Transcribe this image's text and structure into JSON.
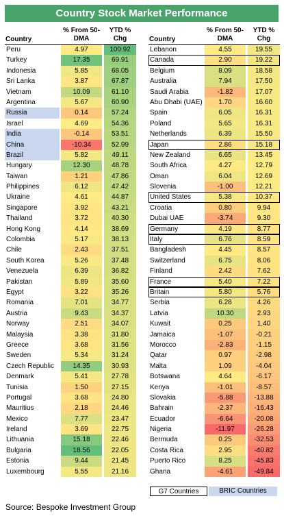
{
  "chart_data": {
    "type": "table",
    "title": "Country Stock Market Performance",
    "columns": [
      "Country",
      "% From 50-DMA",
      "YTD % Chg"
    ],
    "left_rows": [
      {
        "country": "Peru",
        "dma": "4.97",
        "ytd": "100.92",
        "group": ""
      },
      {
        "country": "Turkey",
        "dma": "17.35",
        "ytd": "69.91",
        "group": ""
      },
      {
        "country": "Indonesia",
        "dma": "5.85",
        "ytd": "68.05",
        "group": ""
      },
      {
        "country": "Sri Lanka",
        "dma": "3.87",
        "ytd": "67.87",
        "group": ""
      },
      {
        "country": "Vietnam",
        "dma": "10.09",
        "ytd": "61.10",
        "group": ""
      },
      {
        "country": "Argentina",
        "dma": "5.67",
        "ytd": "60.90",
        "group": ""
      },
      {
        "country": "Russia",
        "dma": "0.14",
        "ytd": "57.24",
        "group": "BRIC"
      },
      {
        "country": "Israel",
        "dma": "4.69",
        "ytd": "54.36",
        "group": ""
      },
      {
        "country": "India",
        "dma": "-0.14",
        "ytd": "53.51",
        "group": "BRIC"
      },
      {
        "country": "China",
        "dma": "-10.34",
        "ytd": "52.99",
        "group": "BRIC"
      },
      {
        "country": "Brazil",
        "dma": "5.82",
        "ytd": "49.11",
        "group": "BRIC"
      },
      {
        "country": "Hungary",
        "dma": "12.30",
        "ytd": "48.78",
        "group": ""
      },
      {
        "country": "Taiwan",
        "dma": "1.21",
        "ytd": "47.86",
        "group": ""
      },
      {
        "country": "Philippines",
        "dma": "6.12",
        "ytd": "47.42",
        "group": ""
      },
      {
        "country": "Ukraine",
        "dma": "4.61",
        "ytd": "44.87",
        "group": ""
      },
      {
        "country": "Singapore",
        "dma": "3.92",
        "ytd": "43.21",
        "group": ""
      },
      {
        "country": "Thailand",
        "dma": "3.72",
        "ytd": "40.30",
        "group": ""
      },
      {
        "country": "Hong Kong",
        "dma": "4.14",
        "ytd": "38.69",
        "group": ""
      },
      {
        "country": "Colombia",
        "dma": "5.17",
        "ytd": "38.13",
        "group": ""
      },
      {
        "country": "Chile",
        "dma": "2.43",
        "ytd": "37.51",
        "group": ""
      },
      {
        "country": "South Korea",
        "dma": "5.26",
        "ytd": "37.48",
        "group": ""
      },
      {
        "country": "Venezuela",
        "dma": "6.39",
        "ytd": "36.82",
        "group": ""
      },
      {
        "country": "Pakistan",
        "dma": "5.89",
        "ytd": "35.60",
        "group": ""
      },
      {
        "country": "Egypt",
        "dma": "3.22",
        "ytd": "35.26",
        "group": ""
      },
      {
        "country": "Romania",
        "dma": "7.01",
        "ytd": "34.77",
        "group": ""
      },
      {
        "country": "Austria",
        "dma": "9.43",
        "ytd": "34.37",
        "group": ""
      },
      {
        "country": "Norway",
        "dma": "2.51",
        "ytd": "34.07",
        "group": ""
      },
      {
        "country": "Malaysia",
        "dma": "3.38",
        "ytd": "31.80",
        "group": ""
      },
      {
        "country": "Greece",
        "dma": "3.68",
        "ytd": "31.56",
        "group": ""
      },
      {
        "country": "Sweden",
        "dma": "5.34",
        "ytd": "31.24",
        "group": ""
      },
      {
        "country": "Czech Republic",
        "dma": "14.35",
        "ytd": "30.93",
        "group": ""
      },
      {
        "country": "Denmark",
        "dma": "5.41",
        "ytd": "27.78",
        "group": ""
      },
      {
        "country": "Tunisia",
        "dma": "1.50",
        "ytd": "27.15",
        "group": ""
      },
      {
        "country": "Portugal",
        "dma": "3.68",
        "ytd": "24.80",
        "group": ""
      },
      {
        "country": "Mauritius",
        "dma": "2.18",
        "ytd": "24.46",
        "group": ""
      },
      {
        "country": "Mexico",
        "dma": "7.77",
        "ytd": "23.47",
        "group": ""
      },
      {
        "country": "Ireland",
        "dma": "3.69",
        "ytd": "22.75",
        "group": ""
      },
      {
        "country": "Lithuania",
        "dma": "15.18",
        "ytd": "22.46",
        "group": ""
      },
      {
        "country": "Bulgaria",
        "dma": "18.56",
        "ytd": "22.05",
        "group": ""
      },
      {
        "country": "Estonia",
        "dma": "9.44",
        "ytd": "21.45",
        "group": ""
      },
      {
        "country": "Luxembourg",
        "dma": "5.55",
        "ytd": "21.16",
        "group": ""
      }
    ],
    "right_rows": [
      {
        "country": "Lebanon",
        "dma": "4.55",
        "ytd": "19.55",
        "group": ""
      },
      {
        "country": "Canada",
        "dma": "2.90",
        "ytd": "19.22",
        "group": "G7"
      },
      {
        "country": "Belgium",
        "dma": "8.09",
        "ytd": "18.58",
        "group": ""
      },
      {
        "country": "Australia",
        "dma": "7.94",
        "ytd": "17.50",
        "group": ""
      },
      {
        "country": "Saudi Arabia",
        "dma": "-1.82",
        "ytd": "17.07",
        "group": ""
      },
      {
        "country": "Abu Dhabi (UAE)",
        "dma": "1.70",
        "ytd": "16.60",
        "group": ""
      },
      {
        "country": "Spain",
        "dma": "6.05",
        "ytd": "16.31",
        "group": ""
      },
      {
        "country": "Poland",
        "dma": "5.65",
        "ytd": "16.31",
        "group": ""
      },
      {
        "country": "Netherlands",
        "dma": "6.39",
        "ytd": "15.50",
        "group": ""
      },
      {
        "country": "Japan",
        "dma": "2.86",
        "ytd": "15.18",
        "group": "G7"
      },
      {
        "country": "New Zealand",
        "dma": "6.65",
        "ytd": "13.45",
        "group": ""
      },
      {
        "country": "South Africa",
        "dma": "4.27",
        "ytd": "12.79",
        "group": ""
      },
      {
        "country": "Oman",
        "dma": "6.04",
        "ytd": "12.69",
        "group": ""
      },
      {
        "country": "Slovenia",
        "dma": "-1.00",
        "ytd": "12.21",
        "group": ""
      },
      {
        "country": "United States",
        "dma": "5.38",
        "ytd": "10.37",
        "group": "G7"
      },
      {
        "country": "Croatia",
        "dma": "0.80",
        "ytd": "9.94",
        "group": ""
      },
      {
        "country": "Dubai UAE",
        "dma": "-3.74",
        "ytd": "9.30",
        "group": ""
      },
      {
        "country": "Germany",
        "dma": "4.19",
        "ytd": "8.77",
        "group": "G7"
      },
      {
        "country": "Italy",
        "dma": "6.76",
        "ytd": "8.59",
        "group": "G7"
      },
      {
        "country": "Bangladesh",
        "dma": "4.45",
        "ytd": "8.57",
        "group": ""
      },
      {
        "country": "Switzerland",
        "dma": "6.75",
        "ytd": "8.06",
        "group": ""
      },
      {
        "country": "Finland",
        "dma": "2.42",
        "ytd": "7.62",
        "group": ""
      },
      {
        "country": "France",
        "dma": "5.40",
        "ytd": "7.22",
        "group": "G7"
      },
      {
        "country": "Britain",
        "dma": "5.80",
        "ytd": "5.76",
        "group": "G7"
      },
      {
        "country": "Serbia",
        "dma": "6.28",
        "ytd": "4.26",
        "group": ""
      },
      {
        "country": "Latvia",
        "dma": "10.30",
        "ytd": "2.93",
        "group": ""
      },
      {
        "country": "Kuwait",
        "dma": "0.25",
        "ytd": "1.40",
        "group": ""
      },
      {
        "country": "Jamaica",
        "dma": "-1.07",
        "ytd": "-0.21",
        "group": ""
      },
      {
        "country": "Morocco",
        "dma": "-2.83",
        "ytd": "-1.15",
        "group": ""
      },
      {
        "country": "Qatar",
        "dma": "0.97",
        "ytd": "-2.98",
        "group": ""
      },
      {
        "country": "Malta",
        "dma": "1.09",
        "ytd": "-4.04",
        "group": ""
      },
      {
        "country": "Botswana",
        "dma": "4.64",
        "ytd": "-6.17",
        "group": ""
      },
      {
        "country": "Kenya",
        "dma": "-1.01",
        "ytd": "-8.57",
        "group": ""
      },
      {
        "country": "Slovakia",
        "dma": "-5.88",
        "ytd": "-13.88",
        "group": ""
      },
      {
        "country": "Bahrain",
        "dma": "-2.37",
        "ytd": "-16.43",
        "group": ""
      },
      {
        "country": "Ecuador",
        "dma": "-6.64",
        "ytd": "-20.08",
        "group": ""
      },
      {
        "country": "Nigeria",
        "dma": "-11.97",
        "ytd": "-26.28",
        "group": ""
      },
      {
        "country": "Bermuda",
        "dma": "0.25",
        "ytd": "-32.53",
        "group": ""
      },
      {
        "country": "Costa Rica",
        "dma": "2.95",
        "ytd": "-40.82",
        "group": ""
      },
      {
        "country": "Puerto Rico",
        "dma": "8.25",
        "ytd": "-45.83",
        "group": ""
      },
      {
        "country": "Ghana",
        "dma": "-4.61",
        "ytd": "-49.84",
        "group": ""
      }
    ]
  },
  "header": {
    "country": "Country",
    "dma_line1": "% From 50-",
    "dma_line2": "DMA",
    "ytd_line1": "YTD %",
    "ytd_line2": "Chg"
  },
  "legend": {
    "g7": "G7 Countries",
    "bric": "BRIC Countries"
  },
  "source": "Source:  Bespoke Investment Group",
  "colors": {
    "title_bg": "#4aa36a",
    "bric_highlight": "#c9d8ee",
    "scale_low": "#f8696b",
    "scale_mid": "#ffeb84",
    "scale_high": "#63be7b"
  }
}
